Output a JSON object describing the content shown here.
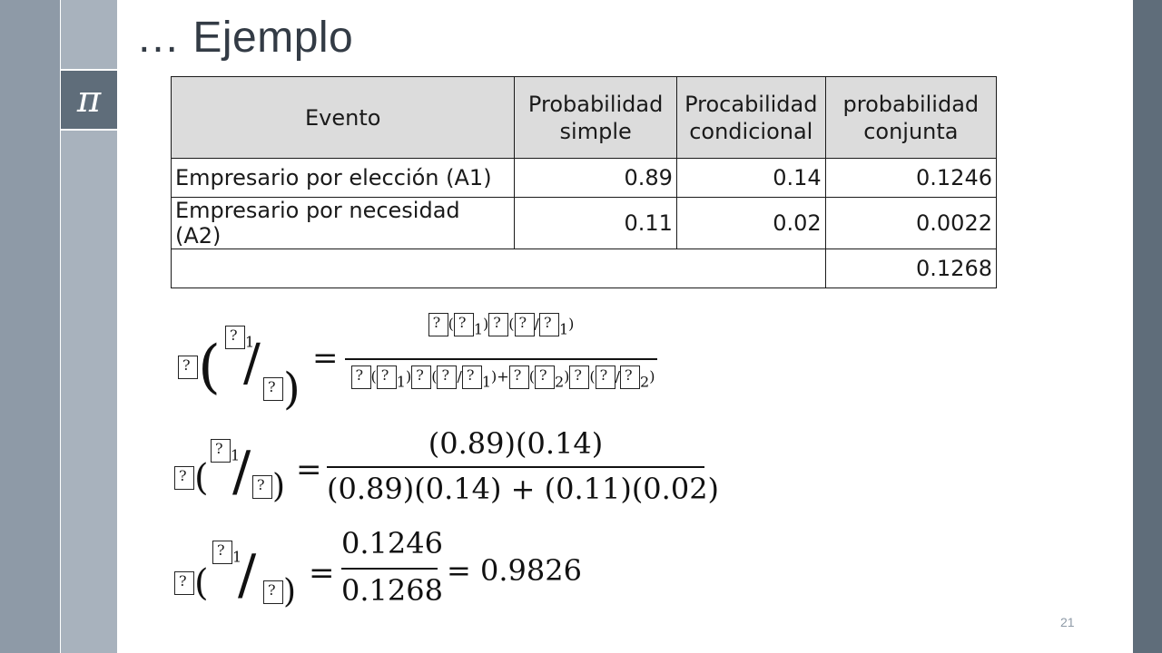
{
  "slide": {
    "title": "… Ejemplo",
    "logo_symbol": "π",
    "page_number": "21"
  },
  "table": {
    "headers": {
      "evento": "Evento",
      "simple_l1": "Probabilidad",
      "simple_l2": "simple",
      "cond_l1": "Procabilidad",
      "cond_l2": "condicional",
      "conj_l1": "probabilidad",
      "conj_l2": "conjunta"
    },
    "rows": [
      {
        "evento": "Empresario por elección  (A1)",
        "simple": "0.89",
        "condicional": "0.14",
        "conjunta": "0.1246"
      },
      {
        "evento": "Empresario por necesidad (A2)",
        "simple": "0.11",
        "condicional": "0.02",
        "conjunta": "0.0022"
      }
    ],
    "total": "0.1268"
  },
  "formulas": {
    "f2_num": "(0.89)(0.14)",
    "f2_den": "(0.89)(0.14) + (0.11)(0.02)",
    "f3_num": "0.1246",
    "f3_den": "0.1268",
    "f3_result": "= 0.9826",
    "equals": "=",
    "plus": "+",
    "sub1": "1",
    "sub2": "2",
    "f1_num_sub1": "1",
    "f1_den_sub1": "1",
    "f1_den_sub2": "2"
  }
}
